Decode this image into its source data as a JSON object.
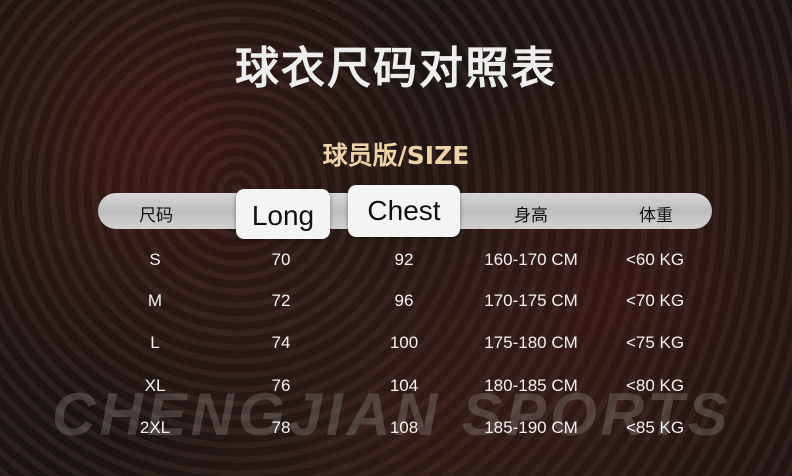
{
  "title": "球衣尺码对照表",
  "subtitle": "球员版/SIZE",
  "watermark": "CHENGJIAN SPORTS",
  "headers": [
    "尺码",
    "Long",
    "Chest",
    "身高",
    "体重"
  ],
  "rows": [
    [
      "S",
      "70",
      "92",
      "160-170 CM",
      "<60 KG"
    ],
    [
      "M",
      "72",
      "96",
      "170-175 CM",
      "<70 KG"
    ],
    [
      "L",
      "74",
      "100",
      "175-180 CM",
      "<75 KG"
    ],
    [
      "XL",
      "76",
      "104",
      "180-185 CM",
      "<80 KG"
    ],
    [
      "2XL",
      "78",
      "108",
      "185-190 CM",
      "<85 KG"
    ]
  ]
}
